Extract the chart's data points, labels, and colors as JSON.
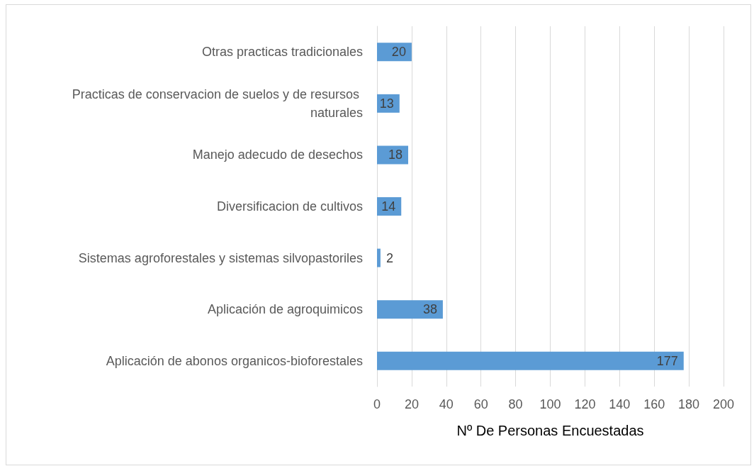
{
  "chart_data": {
    "type": "bar",
    "orientation": "horizontal",
    "xlabel": "Nº De Personas Encuestadas",
    "categories": [
      "Otras practicas tradicionales",
      "Practicas de conservacion de suelos y de resursos naturales",
      "Manejo adecudo de desechos",
      "Diversificacion de cultivos",
      "Sistemas agroforestales y sistemas silvopastoriles",
      "Aplicación de agroquimicos",
      "Aplicación de abonos organicos-bioforestales"
    ],
    "values": [
      20,
      13,
      18,
      14,
      2,
      38,
      177
    ],
    "color": "#5b9bd5",
    "data_labels": true,
    "xlim": [
      0,
      200
    ],
    "xticks": [
      0,
      20,
      40,
      60,
      80,
      100,
      120,
      140,
      160,
      180,
      200
    ],
    "grid": "x"
  }
}
